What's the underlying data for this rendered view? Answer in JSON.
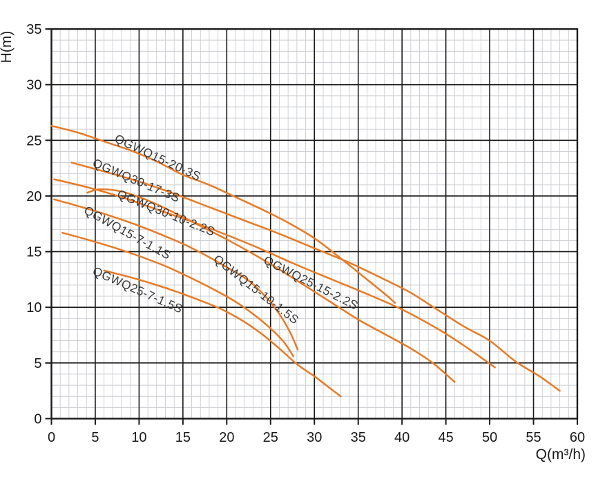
{
  "chart_data": {
    "type": "line",
    "title": "",
    "xlabel": "Q(m³/h)",
    "ylabel": "H(m)",
    "xlim": [
      0,
      60
    ],
    "ylim": [
      0,
      35
    ],
    "x_major_ticks": [
      0,
      5,
      10,
      15,
      20,
      25,
      30,
      35,
      40,
      45,
      50,
      55,
      60
    ],
    "y_major_ticks": [
      0,
      5,
      10,
      15,
      20,
      25,
      30,
      35
    ],
    "minor_step_x": 1,
    "minor_step_y": 1,
    "grid": "major+minor",
    "legend_position": "labels-along-curves",
    "colors": {
      "curve": "#e87a25",
      "major_grid": "#1a1a1a",
      "minor_grid": "#c9ccd2",
      "axis_text": "#1a1a1a",
      "curve_label_text": "#3a3a3a",
      "background": "#ffffff"
    },
    "series": [
      {
        "name": "QGWQ15-20-3S",
        "points": [
          [
            0,
            26.3
          ],
          [
            3,
            25.7
          ],
          [
            6,
            24.9
          ],
          [
            9,
            24.1
          ],
          [
            12,
            23.1
          ],
          [
            15,
            21.9
          ],
          [
            18,
            21.0
          ],
          [
            21,
            19.9
          ],
          [
            24,
            18.8
          ],
          [
            27,
            17.6
          ],
          [
            30,
            16.2
          ],
          [
            33,
            14.4
          ],
          [
            36,
            12.5
          ],
          [
            38.2,
            11.1
          ],
          [
            39.2,
            10.4
          ]
        ],
        "label": {
          "q": 7.1,
          "h": 24.9,
          "rot": 25
        }
      },
      {
        "name": "QGWQ30-17-3S",
        "points": [
          [
            2.3,
            23.0
          ],
          [
            6,
            22.2
          ],
          [
            10,
            21.3
          ],
          [
            14,
            20.2
          ],
          [
            18,
            19.0
          ],
          [
            22,
            17.8
          ],
          [
            26,
            16.6
          ],
          [
            30,
            15.3
          ],
          [
            34,
            14.0
          ],
          [
            38,
            12.5
          ],
          [
            41,
            11.3
          ],
          [
            44,
            9.8
          ],
          [
            47,
            8.3
          ],
          [
            50,
            7.0
          ],
          [
            53,
            5.1
          ],
          [
            55.5,
            3.9
          ],
          [
            58,
            2.5
          ]
        ],
        "label": {
          "q": 4.6,
          "h": 22.7,
          "rot": 23
        }
      },
      {
        "name": "QGWQ30-10-2.2S",
        "points": [
          [
            0.3,
            21.5
          ],
          [
            4,
            20.8
          ],
          [
            8,
            19.9
          ],
          [
            12,
            18.8
          ],
          [
            16,
            17.7
          ],
          [
            20,
            16.5
          ],
          [
            24,
            15.2
          ],
          [
            28,
            13.8
          ],
          [
            32,
            12.5
          ],
          [
            36,
            11.2
          ],
          [
            40,
            9.8
          ],
          [
            44,
            8.1
          ],
          [
            47,
            6.6
          ],
          [
            50.6,
            4.6
          ]
        ],
        "label": {
          "q": 7.4,
          "h": 19.9,
          "rot": 22
        }
      },
      {
        "name": "QGWQ15-7-1.1S",
        "points": [
          [
            0.3,
            19.7
          ],
          [
            3,
            19.1
          ],
          [
            6,
            18.4
          ],
          [
            9,
            17.6
          ],
          [
            12,
            16.7
          ],
          [
            15,
            15.7
          ],
          [
            18,
            14.5
          ],
          [
            20,
            13.6
          ],
          [
            22.5,
            12.4
          ],
          [
            24.5,
            10.9
          ],
          [
            26,
            9.4
          ],
          [
            27.2,
            7.8
          ],
          [
            28.1,
            6.2
          ]
        ],
        "label": {
          "q": 3.6,
          "h": 18.5,
          "rot": 29
        }
      },
      {
        "name": "QGWQ25-7-1.5S",
        "points": [
          [
            1.25,
            16.7
          ],
          [
            4,
            16.1
          ],
          [
            7,
            15.4
          ],
          [
            10,
            14.6
          ],
          [
            13,
            13.7
          ],
          [
            16,
            12.6
          ],
          [
            19,
            11.4
          ],
          [
            21,
            10.5
          ],
          [
            23,
            9.4
          ],
          [
            25,
            8.1
          ],
          [
            26.5,
            6.9
          ],
          [
            27.6,
            5.6
          ]
        ],
        "label": {
          "q": 4.6,
          "h": 13.0,
          "rot": 24
        }
      },
      {
        "name": "QGWQ15-10-1.5S",
        "points": [
          [
            6,
            13.3
          ],
          [
            9,
            12.7
          ],
          [
            12,
            12.0
          ],
          [
            15,
            11.2
          ],
          [
            18,
            10.3
          ],
          [
            20,
            9.6
          ],
          [
            22,
            8.7
          ],
          [
            24,
            7.6
          ],
          [
            26,
            6.3
          ],
          [
            28,
            4.9
          ],
          [
            30,
            3.8
          ],
          [
            31.5,
            2.9
          ],
          [
            33,
            2.0
          ]
        ],
        "label": {
          "q": 18.4,
          "h": 14.2,
          "rot": 38
        }
      },
      {
        "name": "QGWQ25-15-2.2S",
        "points": [
          [
            4.1,
            20.3
          ],
          [
            5.5,
            20.6
          ],
          [
            8,
            20.4
          ],
          [
            11,
            19.6
          ],
          [
            14,
            18.5
          ],
          [
            17,
            17.3
          ],
          [
            20,
            16.1
          ],
          [
            23,
            14.8
          ],
          [
            26,
            13.4
          ],
          [
            29,
            11.9
          ],
          [
            32,
            10.4
          ],
          [
            35,
            8.9
          ],
          [
            38,
            7.6
          ],
          [
            41,
            6.3
          ],
          [
            43.5,
            5.0
          ],
          [
            46,
            3.3
          ]
        ],
        "label": {
          "q": 24.1,
          "h": 14.0,
          "rot": 27
        }
      }
    ]
  }
}
